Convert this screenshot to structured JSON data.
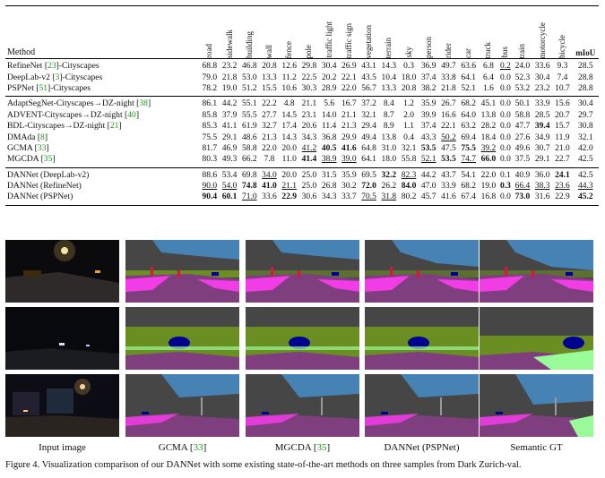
{
  "table": {
    "method_header": "Method",
    "class_headers": [
      "road",
      "sidewalk",
      "building",
      "wall",
      "fence",
      "pole",
      "traffic light",
      "traffic sign",
      "vegetation",
      "terrain",
      "sky",
      "person",
      "rider",
      "car",
      "truck",
      "bus",
      "train",
      "motorcycle",
      "bicycle"
    ],
    "miou_header": "mIoU",
    "groups": [
      [
        {
          "name": "RefineNet [",
          "ref": "23",
          "suffix": "]-Cityscapes",
          "values": [
            "68.8",
            "23.2",
            "46.8",
            "20.8",
            "12.6",
            "29.8",
            "30.4",
            "26.9",
            "43.1",
            "14.3",
            "0.3",
            "36.9",
            "49.7",
            "63.6",
            "6.8",
            "0.2",
            "24.0",
            "33.6",
            "9.3",
            "28.5"
          ]
        },
        {
          "name": "DeepLab-v2 [",
          "ref": "3",
          "suffix": "]-Cityscapes",
          "values": [
            "79.0",
            "21.8",
            "53.0",
            "13.3",
            "11.2",
            "22.5",
            "20.2",
            "22.1",
            "43.5",
            "10.4",
            "18.0",
            "37.4",
            "33.8",
            "64.1",
            "6.4",
            "0.0",
            "52.3",
            "30.4",
            "7.4",
            "28.8"
          ]
        },
        {
          "name": "PSPNet [",
          "ref": "51",
          "suffix": "]-Cityscapes",
          "values": [
            "78.2",
            "19.0",
            "51.2",
            "15.5",
            "10.6",
            "30.3",
            "28.9",
            "22.0",
            "56.7",
            "13.3",
            "20.8",
            "38.2",
            "21.8",
            "52.1",
            "1.6",
            "0.0",
            "53.2",
            "23.2",
            "10.7",
            "28.8"
          ]
        }
      ],
      [
        {
          "name": "AdaptSegNet-Cityscapes→DZ-night [",
          "ref": "38",
          "suffix": "]",
          "values": [
            "86.1",
            "44.2",
            "55.1",
            "22.2",
            "4.8",
            "21.1",
            "5.6",
            "16.7",
            "37.2",
            "8.4",
            "1.2",
            "35.9",
            "26.7",
            "68.2",
            "45.1",
            "0.0",
            "50.1",
            "33.9",
            "15.6",
            "30.4"
          ]
        },
        {
          "name": "ADVENT-Cityscapes→DZ-night [",
          "ref": "40",
          "suffix": "]",
          "values": [
            "85.8",
            "37.9",
            "55.5",
            "27.7",
            "14.5",
            "23.1",
            "14.0",
            "21.1",
            "32.1",
            "8.7",
            "2.0",
            "39.9",
            "16.6",
            "64.0",
            "13.8",
            "0.0",
            "58.8",
            "28.5",
            "20.7",
            "29.7"
          ]
        },
        {
          "name": "BDL-Cityscapes→DZ-night [",
          "ref": "21",
          "suffix": "]",
          "values": [
            "85.3",
            "41.1",
            "61.9",
            "32.7",
            "17.4",
            "20.6",
            "11.4",
            "21.3",
            "29.4",
            "8.9",
            "1.1",
            "37.4",
            "22.1",
            "63.2",
            "28.2",
            "0.0",
            "47.7",
            "39.4",
            "15.7",
            "30.8"
          ]
        },
        {
          "name": "DMAda [",
          "ref": "8",
          "suffix": "]",
          "values": [
            "75.5",
            "29.1",
            "48.6",
            "21.3",
            "14.3",
            "34.3",
            "36.8",
            "29.9",
            "49.4",
            "13.8",
            "0.4",
            "43.3",
            "50.2",
            "69.4",
            "18.4",
            "0.0",
            "27.6",
            "34.9",
            "11.9",
            "32.1"
          ]
        },
        {
          "name": "GCMA [",
          "ref": "33",
          "suffix": "]",
          "values": [
            "81.7",
            "46.9",
            "58.8",
            "22.0",
            "20.0",
            "41.2",
            "40.5",
            "41.6",
            "64.8",
            "31.0",
            "32.1",
            "53.5",
            "47.5",
            "75.5",
            "39.2",
            "0.0",
            "49.6",
            "30.7",
            "21.0",
            "42.0"
          ]
        },
        {
          "name": "MGCDA [",
          "ref": "35",
          "suffix": "]",
          "values": [
            "80.3",
            "49.3",
            "66.2",
            "7.8",
            "11.0",
            "41.4",
            "38.9",
            "39.0",
            "64.1",
            "18.0",
            "55.8",
            "52.1",
            "53.5",
            "74.7",
            "66.0",
            "0.0",
            "37.5",
            "29.1",
            "22.7",
            "42.5"
          ]
        }
      ],
      [
        {
          "name": "DANNet (DeepLab-v2)",
          "ref": "",
          "suffix": "",
          "values": [
            "88.6",
            "53.4",
            "69.8",
            "34.0",
            "20.0",
            "25.0",
            "31.5",
            "35.9",
            "69.5",
            "32.2",
            "82.3",
            "44.2",
            "43.7",
            "54.1",
            "22.0",
            "0.1",
            "40.9",
            "36.0",
            "24.1",
            "42.5"
          ]
        },
        {
          "name": "DANNet (RefineNet)",
          "ref": "",
          "suffix": "",
          "values": [
            "90.0",
            "54.0",
            "74.8",
            "41.0",
            "21.1",
            "25.0",
            "26.8",
            "30.2",
            "72.0",
            "26.2",
            "84.0",
            "47.0",
            "33.9",
            "68.2",
            "19.0",
            "0.3",
            "66.4",
            "38.3",
            "23.6",
            "44.3"
          ]
        },
        {
          "name": "DANNet (PSPNet)",
          "ref": "",
          "suffix": "",
          "values": [
            "90.4",
            "60.1",
            "71.0",
            "33.6",
            "22.9",
            "30.6",
            "34.3",
            "33.7",
            "70.5",
            "31.8",
            "80.2",
            "45.7",
            "41.6",
            "67.4",
            "16.8",
            "0.0",
            "73.0",
            "31.6",
            "22.9",
            "45.2"
          ]
        }
      ]
    ]
  },
  "figure": {
    "captions": [
      {
        "text": "Input image",
        "ref": "",
        "suffix": ""
      },
      {
        "text": "GCMA [",
        "ref": "33",
        "suffix": "]"
      },
      {
        "text": "MGCDA [",
        "ref": "35",
        "suffix": "]"
      },
      {
        "text": "DANNet (PSPNet)",
        "ref": "",
        "suffix": ""
      },
      {
        "text": "Semantic GT",
        "ref": "",
        "suffix": ""
      }
    ],
    "caption": "Figure 4. Visualization comparison of our DANNet with some existing state-of-the-art methods on three samples from Dark Zurich-val.",
    "colors": {
      "road": "#7f3f7f",
      "sidewalk": "#f23ce6",
      "building": "#464646",
      "vegetation": "#6b8e23",
      "terrain": "#98fb98",
      "sky": "#4682b4",
      "car": "#00008e",
      "person": "#dc143c",
      "pole": "#999999"
    }
  }
}
